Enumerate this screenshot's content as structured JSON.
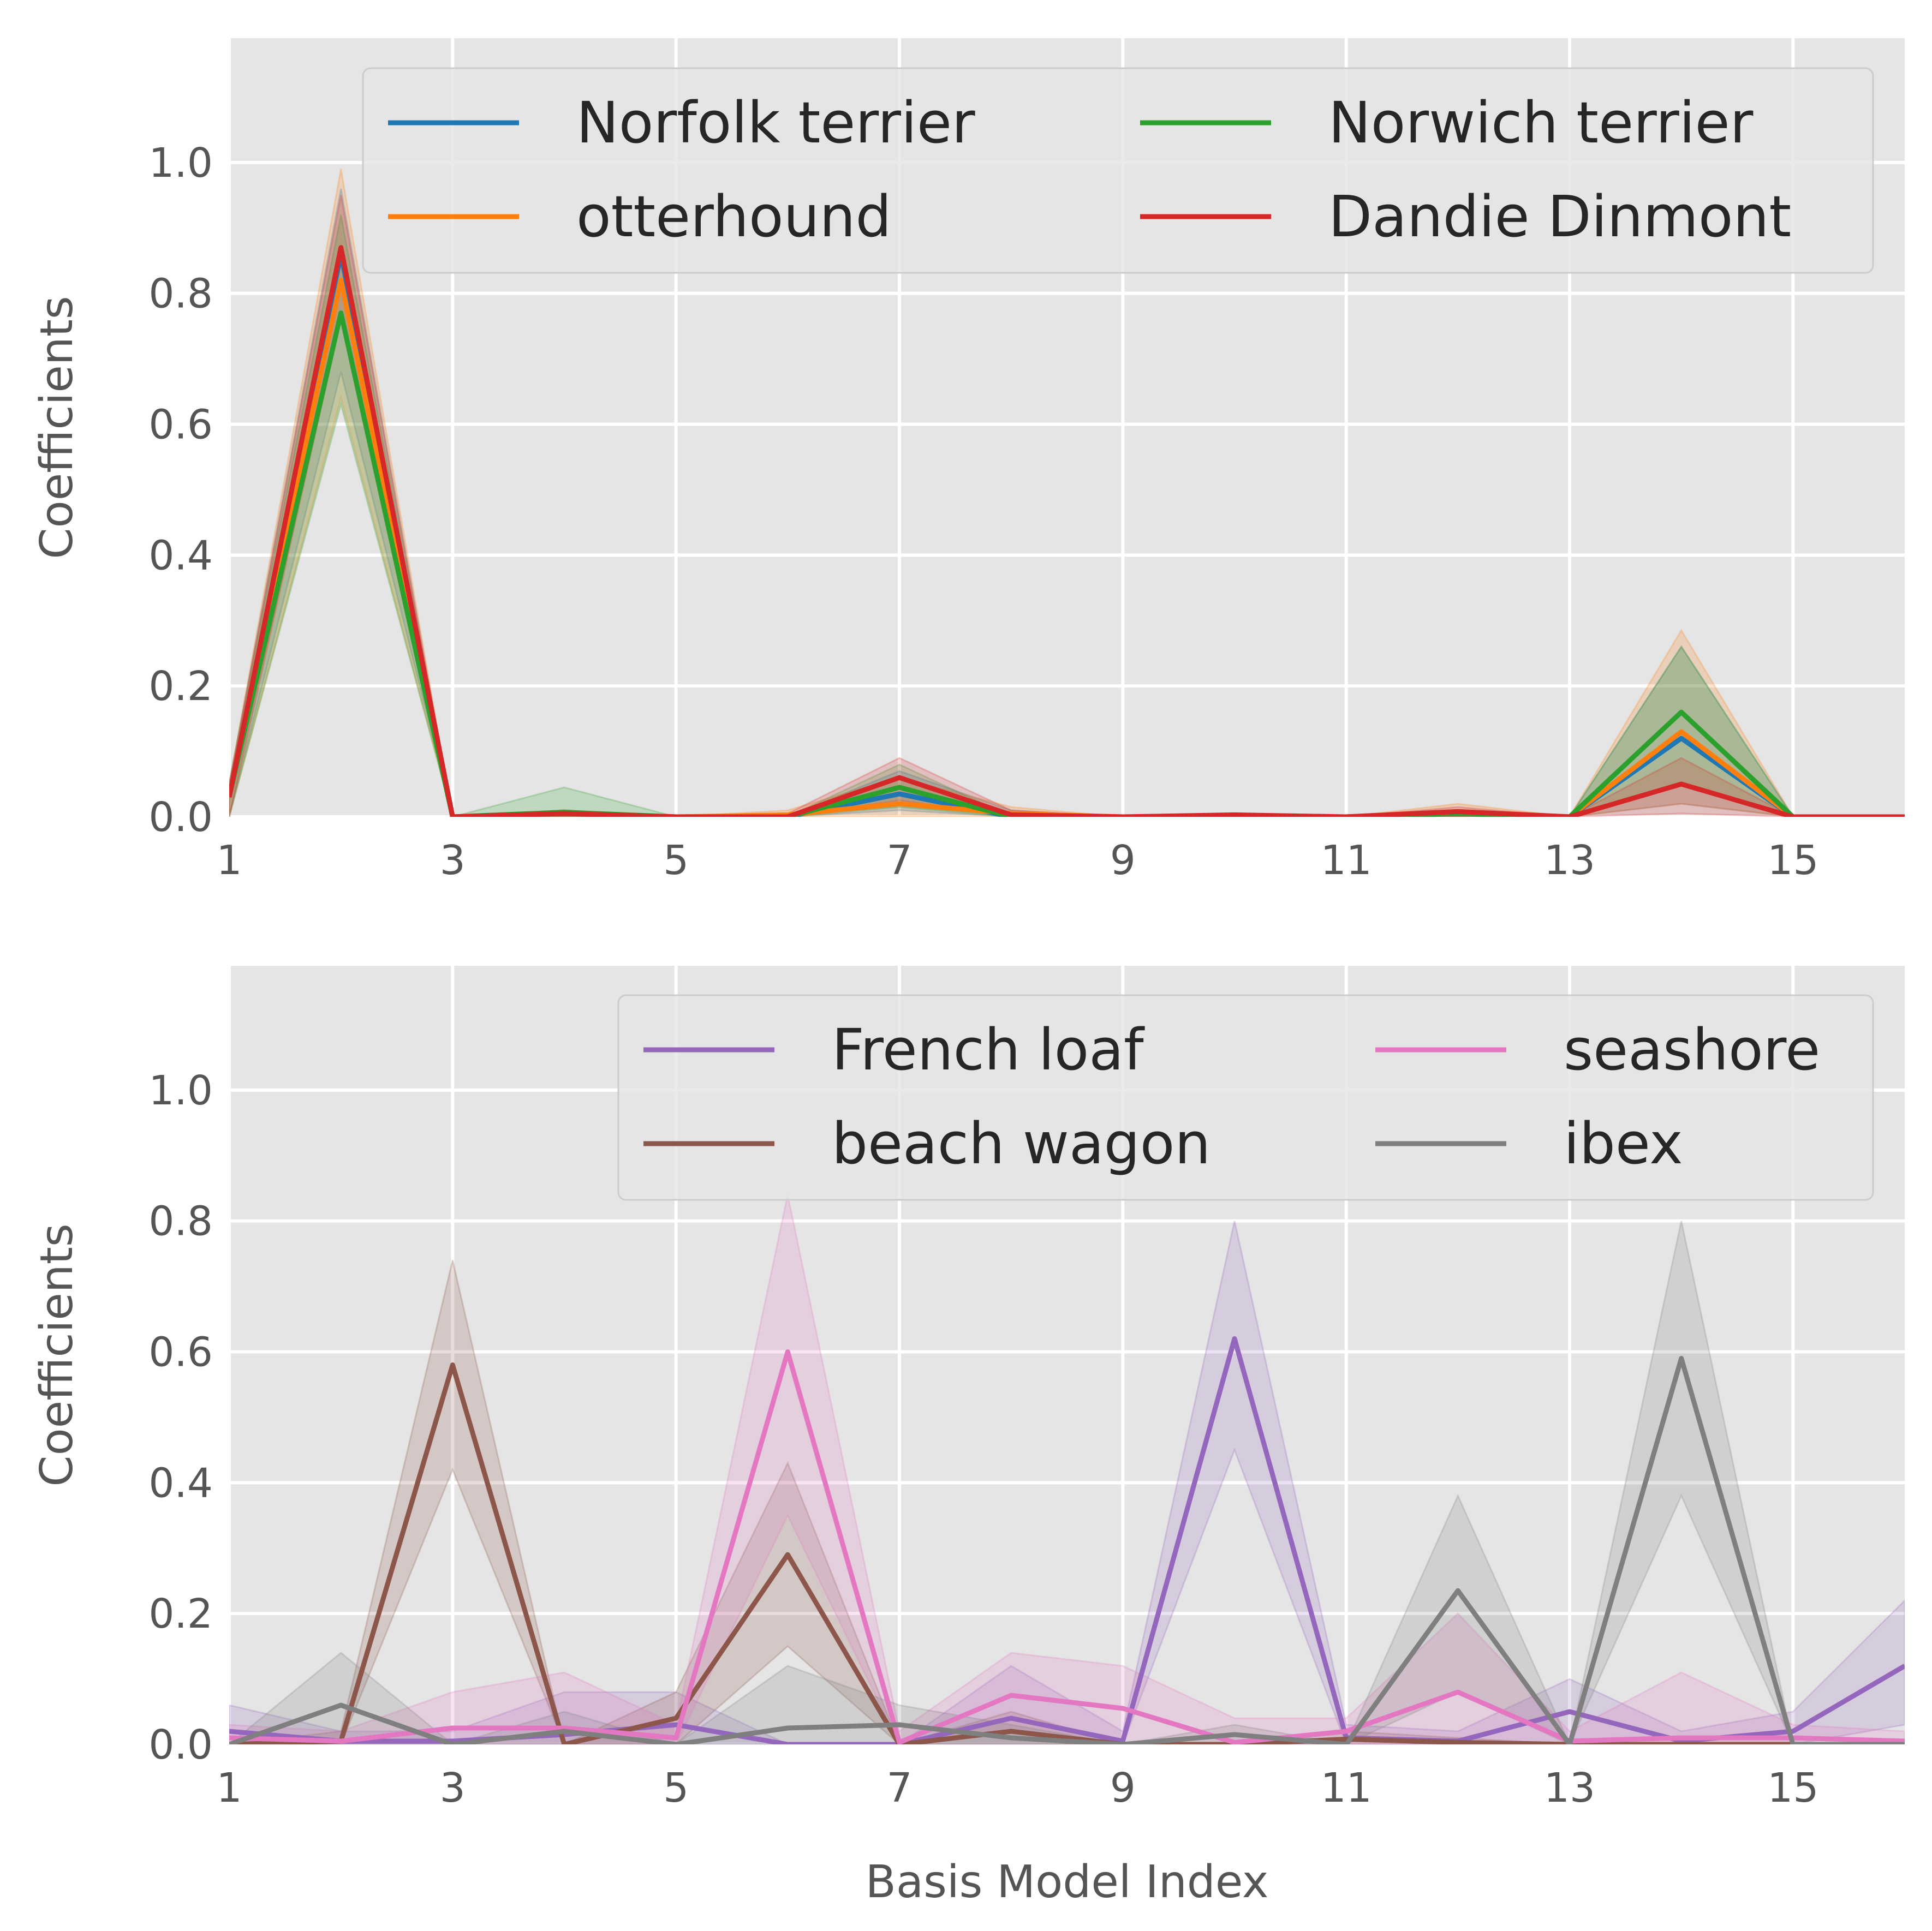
{
  "xlabel": "Basis Model Index",
  "chart_data": [
    {
      "type": "line",
      "title": "",
      "xlabel": "",
      "ylabel": "Coefficients",
      "xlim": [
        1,
        16
      ],
      "ylim": [
        0,
        1.19
      ],
      "xticks": [
        1,
        3,
        5,
        7,
        9,
        11,
        13,
        15
      ],
      "yticks": [
        0.0,
        0.2,
        0.4,
        0.6,
        0.8,
        1.0
      ],
      "ytick_labels": [
        "0.0",
        "0.2",
        "0.4",
        "0.6",
        "0.8",
        "1.0"
      ],
      "grid": true,
      "legend": {
        "position": "upper-right",
        "columns": 2
      },
      "x": [
        1,
        2,
        3,
        4,
        5,
        6,
        7,
        8,
        9,
        10,
        11,
        12,
        13,
        14,
        15,
        16
      ],
      "series": [
        {
          "name": "Norfolk terrier",
          "color": "#1f77b4",
          "values": [
            0.03,
            0.86,
            0.0,
            0.005,
            0.0,
            0.0,
            0.035,
            0.0,
            0.0,
            0.0,
            0.0,
            0.005,
            0.0,
            0.12,
            0.0,
            0.0
          ],
          "lower": [
            0.0,
            0.68,
            0.0,
            0.0,
            0.0,
            0.0,
            0.01,
            0.0,
            0.0,
            0.0,
            0.0,
            0.0,
            0.0,
            0.02,
            0.0,
            0.0
          ],
          "upper": [
            0.05,
            0.96,
            0.0,
            0.01,
            0.0,
            0.0,
            0.07,
            0.01,
            0.0,
            0.0,
            0.0,
            0.01,
            0.0,
            0.26,
            0.0,
            0.0
          ]
        },
        {
          "name": "otterhound",
          "color": "#ff7f0e",
          "values": [
            0.03,
            0.82,
            0.0,
            0.005,
            0.0,
            0.003,
            0.02,
            0.005,
            0.0,
            0.0,
            0.0,
            0.008,
            0.0,
            0.13,
            0.0,
            0.0
          ],
          "lower": [
            0.0,
            0.64,
            0.0,
            0.0,
            0.0,
            0.0,
            0.0,
            0.0,
            0.0,
            0.0,
            0.0,
            0.0,
            0.0,
            0.02,
            0.0,
            0.0
          ],
          "upper": [
            0.05,
            0.99,
            0.0,
            0.01,
            0.0,
            0.01,
            0.06,
            0.015,
            0.0,
            0.0,
            0.0,
            0.02,
            0.0,
            0.285,
            0.0,
            0.0
          ]
        },
        {
          "name": "Norwich terrier",
          "color": "#2ca02c",
          "values": [
            0.03,
            0.77,
            0.0,
            0.007,
            0.0,
            0.0,
            0.045,
            0.0,
            0.0,
            0.0,
            0.0,
            0.005,
            0.0,
            0.16,
            0.0,
            0.0
          ],
          "lower": [
            0.0,
            0.63,
            0.0,
            0.0,
            0.0,
            0.0,
            0.015,
            0.0,
            0.0,
            0.0,
            0.0,
            0.0,
            0.0,
            0.05,
            0.0,
            0.0
          ],
          "upper": [
            0.05,
            0.92,
            0.0,
            0.045,
            0.0,
            0.0,
            0.08,
            0.0,
            0.0,
            0.0,
            0.0,
            0.01,
            0.0,
            0.26,
            0.0,
            0.0
          ]
        },
        {
          "name": "Dandie Dinmont",
          "color": "#d62728",
          "values": [
            0.03,
            0.87,
            0.0,
            0.005,
            0.0,
            0.0,
            0.06,
            0.003,
            0.0,
            0.003,
            0.0,
            0.008,
            0.0,
            0.05,
            0.0,
            0.0
          ],
          "lower": [
            0.0,
            0.76,
            0.0,
            0.0,
            0.0,
            0.0,
            0.025,
            0.0,
            0.0,
            0.0,
            0.0,
            0.0,
            0.0,
            0.005,
            0.0,
            0.0
          ],
          "upper": [
            0.05,
            0.95,
            0.0,
            0.01,
            0.0,
            0.005,
            0.09,
            0.01,
            0.0,
            0.005,
            0.0,
            0.015,
            0.0,
            0.09,
            0.0,
            0.0
          ]
        }
      ]
    },
    {
      "type": "line",
      "title": "",
      "xlabel": "Basis Model Index",
      "ylabel": "Coefficients",
      "xlim": [
        1,
        16
      ],
      "ylim": [
        0,
        1.19
      ],
      "xticks": [
        1,
        3,
        5,
        7,
        9,
        11,
        13,
        15
      ],
      "yticks": [
        0.0,
        0.2,
        0.4,
        0.6,
        0.8,
        1.0
      ],
      "ytick_labels": [
        "0.0",
        "0.2",
        "0.4",
        "0.6",
        "0.8",
        "1.0"
      ],
      "grid": true,
      "legend": {
        "position": "upper-right",
        "columns": 2
      },
      "x": [
        1,
        2,
        3,
        4,
        5,
        6,
        7,
        8,
        9,
        10,
        11,
        12,
        13,
        14,
        15,
        16
      ],
      "series": [
        {
          "name": "French loaf",
          "color": "#9467bd",
          "values": [
            0.02,
            0.005,
            0.005,
            0.015,
            0.03,
            0.0,
            0.0,
            0.04,
            0.005,
            0.62,
            0.01,
            0.005,
            0.05,
            0.005,
            0.02,
            0.12
          ],
          "lower": [
            0.0,
            0.0,
            0.0,
            0.0,
            0.0,
            0.0,
            0.0,
            0.0,
            0.0,
            0.45,
            0.0,
            0.0,
            0.0,
            0.0,
            0.0,
            0.03
          ],
          "upper": [
            0.06,
            0.02,
            0.02,
            0.08,
            0.08,
            0.0,
            0.0,
            0.12,
            0.02,
            0.8,
            0.03,
            0.02,
            0.1,
            0.02,
            0.05,
            0.22
          ]
        },
        {
          "name": "beach wagon",
          "color": "#8c564b",
          "values": [
            0.0,
            0.005,
            0.58,
            0.0,
            0.04,
            0.29,
            0.0,
            0.02,
            0.0,
            0.0,
            0.008,
            0.003,
            0.0,
            0.0,
            0.0,
            0.0
          ],
          "lower": [
            0.0,
            0.0,
            0.42,
            0.0,
            0.0,
            0.15,
            0.0,
            0.0,
            0.0,
            0.0,
            0.0,
            0.0,
            0.0,
            0.0,
            0.0,
            0.0
          ],
          "upper": [
            0.0,
            0.02,
            0.74,
            0.0,
            0.08,
            0.43,
            0.0,
            0.05,
            0.0,
            0.0,
            0.02,
            0.01,
            0.0,
            0.0,
            0.0,
            0.0
          ]
        },
        {
          "name": "seashore",
          "color": "#e377c2",
          "values": [
            0.01,
            0.005,
            0.025,
            0.025,
            0.01,
            0.6,
            0.003,
            0.075,
            0.055,
            0.003,
            0.02,
            0.08,
            0.005,
            0.01,
            0.01,
            0.005
          ],
          "lower": [
            0.0,
            0.0,
            0.0,
            0.0,
            0.0,
            0.35,
            0.0,
            0.02,
            0.0,
            0.0,
            0.0,
            0.0,
            0.0,
            0.0,
            0.0,
            0.0
          ],
          "upper": [
            0.03,
            0.02,
            0.08,
            0.11,
            0.03,
            0.84,
            0.02,
            0.14,
            0.12,
            0.04,
            0.04,
            0.2,
            0.02,
            0.11,
            0.03,
            0.02
          ]
        },
        {
          "name": "ibex",
          "color": "#7f7f7f",
          "values": [
            0.0,
            0.06,
            0.0,
            0.02,
            0.0,
            0.025,
            0.03,
            0.01,
            0.0,
            0.015,
            0.0,
            0.235,
            0.0,
            0.59,
            0.0,
            0.0
          ],
          "lower": [
            0.0,
            0.0,
            0.0,
            0.0,
            0.0,
            0.0,
            0.0,
            0.0,
            0.0,
            0.0,
            0.0,
            0.08,
            0.0,
            0.38,
            0.0,
            0.0
          ],
          "upper": [
            0.0,
            0.14,
            0.0,
            0.05,
            0.0,
            0.12,
            0.06,
            0.03,
            0.0,
            0.03,
            0.0,
            0.38,
            0.0,
            0.8,
            0.0,
            0.0
          ]
        }
      ]
    }
  ]
}
